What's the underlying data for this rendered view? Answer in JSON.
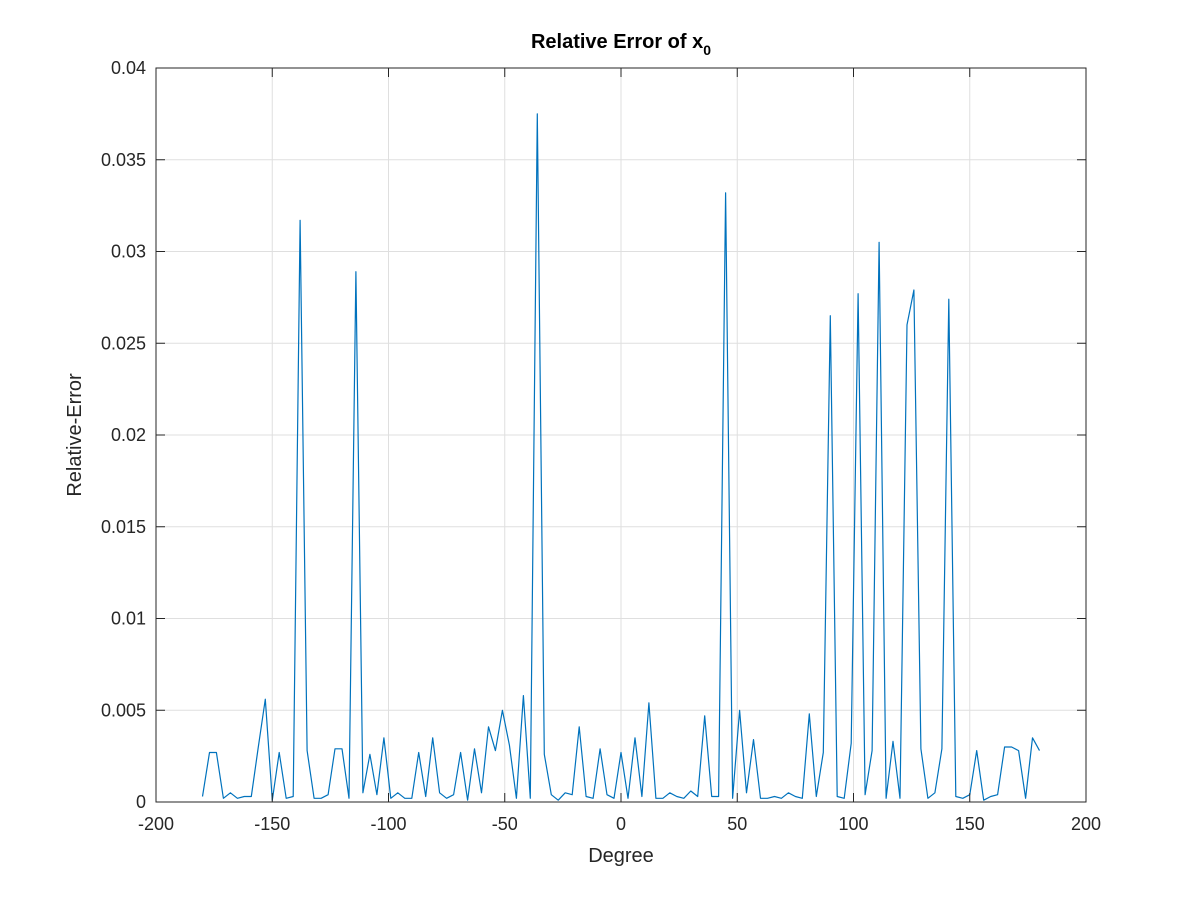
{
  "chart_data": {
    "type": "line",
    "title": "Relative Error of x",
    "title_subscript": "0",
    "xlabel": "Degree",
    "ylabel": "Relative-Error",
    "xlim": [
      -200,
      200
    ],
    "ylim": [
      0,
      0.04
    ],
    "xticks": [
      -200,
      -150,
      -100,
      -50,
      0,
      50,
      100,
      150,
      200
    ],
    "yticks": [
      0,
      0.005,
      0.01,
      0.015,
      0.02,
      0.025,
      0.03,
      0.035,
      0.04
    ],
    "xtick_labels": [
      "-200",
      "-150",
      "-100",
      "-50",
      "0",
      "50",
      "100",
      "150",
      "200"
    ],
    "ytick_labels": [
      "0",
      "0.005",
      "0.01",
      "0.015",
      "0.02",
      "0.025",
      "0.03",
      "0.035",
      "0.04"
    ],
    "grid": true,
    "line_color": "#0072BD",
    "series": [
      {
        "x": [
          -180,
          -177,
          -174,
          -171,
          -168,
          -165,
          -162,
          -159,
          -156,
          -153,
          -150,
          -147,
          -144,
          -141,
          -138,
          -135,
          -132,
          -129,
          -126,
          -123,
          -120,
          -117,
          -114,
          -111,
          -108,
          -105,
          -102,
          -99,
          -96,
          -93,
          -90,
          -87,
          -84,
          -81,
          -78,
          -75,
          -72,
          -69,
          -66,
          -63,
          -60,
          -57,
          -54,
          -51,
          -48,
          -45,
          -42,
          -39,
          -36,
          -33,
          -30,
          -27,
          -24,
          -21,
          -18,
          -15,
          -12,
          -9,
          -6,
          -3,
          0,
          3,
          6,
          9,
          12,
          15,
          18,
          21,
          24,
          27,
          30,
          33,
          36,
          39,
          42,
          45,
          48,
          51,
          54,
          57,
          60,
          63,
          66,
          69,
          72,
          75,
          78,
          81,
          84,
          87,
          90,
          93,
          96,
          99,
          102,
          105,
          108,
          111,
          114,
          117,
          120,
          123,
          126,
          129,
          132,
          135,
          138,
          141,
          144,
          147,
          150,
          153,
          156,
          159,
          162,
          165,
          168,
          171,
          174,
          177,
          180
        ],
        "y": [
          0.0003,
          0.0027,
          0.0027,
          0.0002,
          0.0005,
          0.0002,
          0.0003,
          0.0003,
          0.003,
          0.0056,
          0.0001,
          0.0027,
          0.0002,
          0.0003,
          0.0317,
          0.0028,
          0.0002,
          0.0002,
          0.0004,
          0.0029,
          0.0029,
          0.0002,
          0.0289,
          0.0005,
          0.0026,
          0.0004,
          0.0035,
          0.0002,
          0.0005,
          0.0002,
          0.0002,
          0.0027,
          0.0003,
          0.0035,
          0.0005,
          0.0002,
          0.0004,
          0.0027,
          0.0001,
          0.0029,
          0.0005,
          0.0041,
          0.0028,
          0.005,
          0.0031,
          0.0002,
          0.0058,
          0.0002,
          0.0375,
          0.0026,
          0.0004,
          0.0001,
          0.0005,
          0.0004,
          0.0041,
          0.0003,
          0.0002,
          0.0029,
          0.0004,
          0.0002,
          0.0027,
          0.0002,
          0.0035,
          0.0003,
          0.0054,
          0.0002,
          0.0002,
          0.0005,
          0.0003,
          0.0002,
          0.0006,
          0.0003,
          0.0047,
          0.0003,
          0.0003,
          0.0332,
          0.0002,
          0.005,
          0.0005,
          0.0034,
          0.0002,
          0.0002,
          0.0003,
          0.0002,
          0.0005,
          0.0003,
          0.0002,
          0.0048,
          0.0003,
          0.0027,
          0.0265,
          0.0003,
          0.0002,
          0.0032,
          0.0277,
          0.0004,
          0.0028,
          0.0305,
          0.0002,
          0.0033,
          0.0002,
          0.026,
          0.0279,
          0.0029,
          0.0002,
          0.0005,
          0.0029,
          0.0274,
          0.0003,
          0.0002,
          0.0004,
          0.0028,
          0.0001,
          0.0003,
          0.0004,
          0.003,
          0.003,
          0.0028,
          0.0002,
          0.0035,
          0.0028
        ]
      }
    ]
  }
}
